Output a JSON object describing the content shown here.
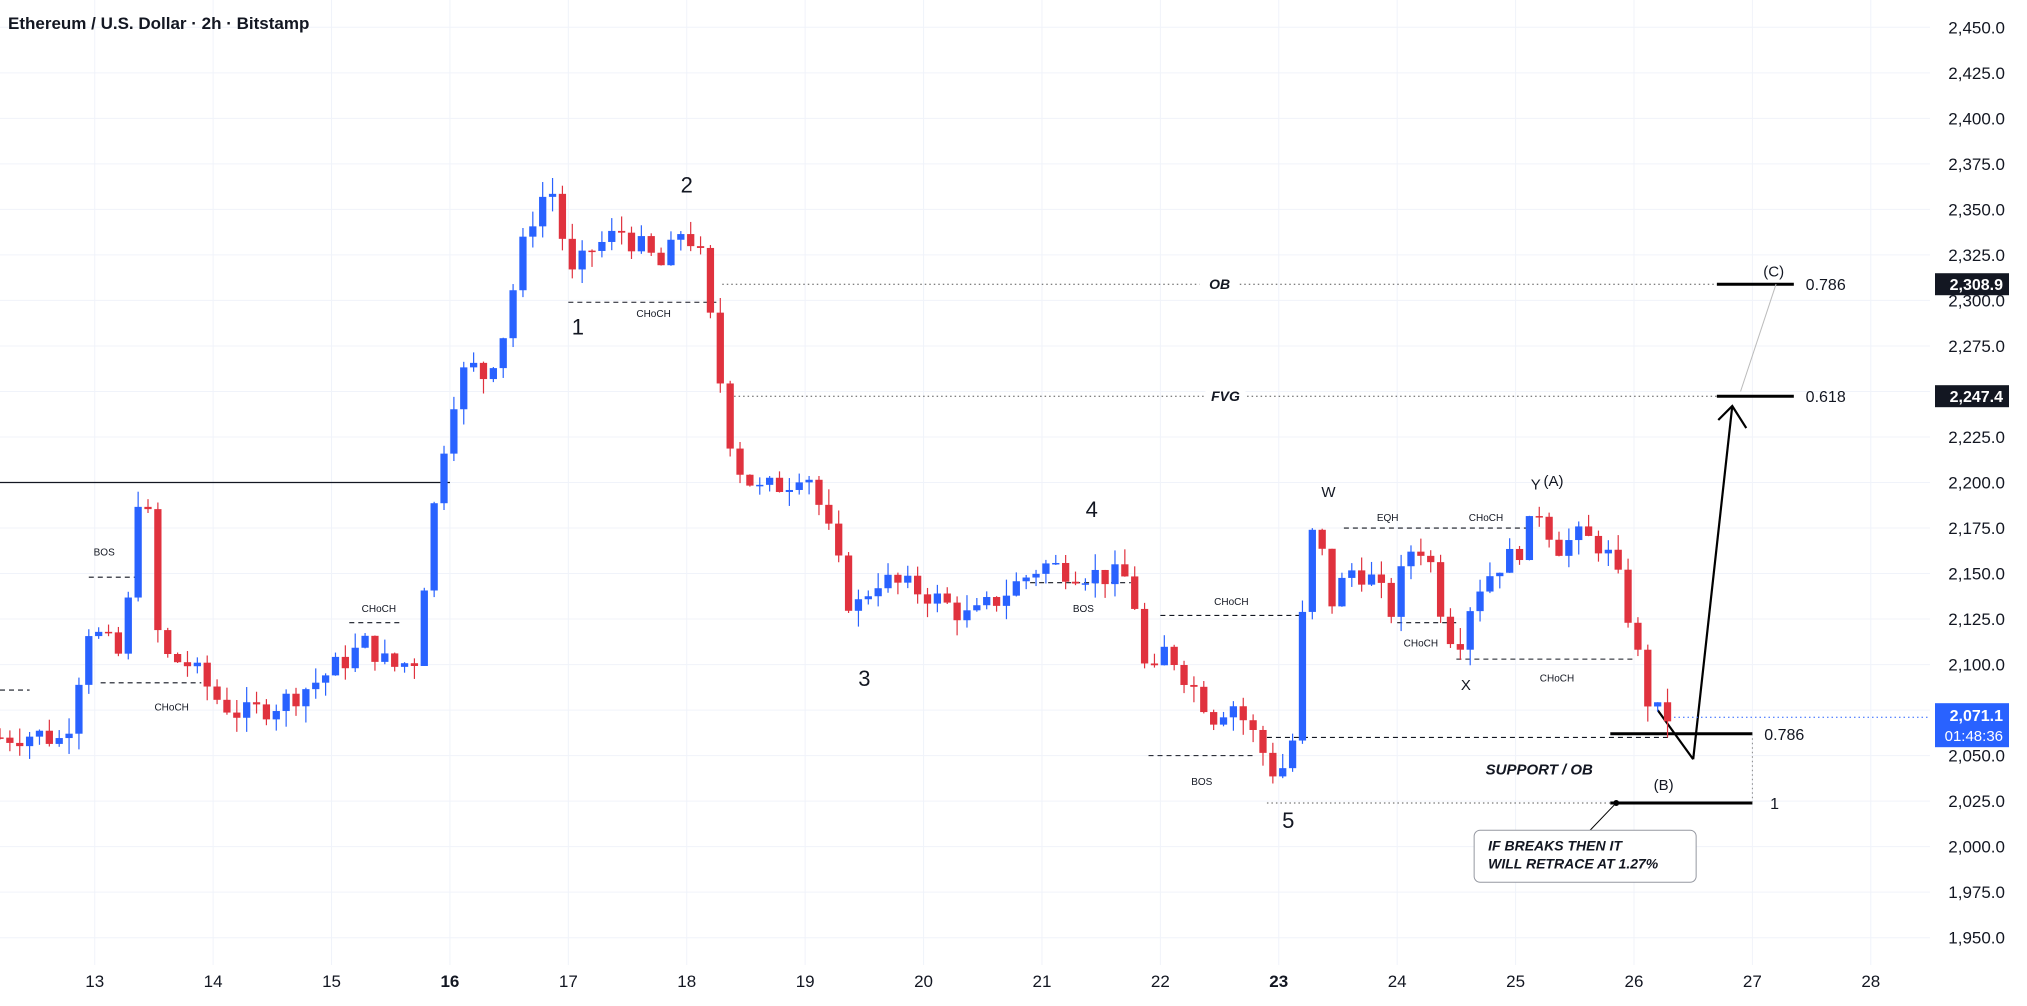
{
  "header": {
    "title": "Ethereum / U.S. Dollar · 2h · Bitstamp"
  },
  "colors": {
    "up": "#2962ff",
    "down": "#e0323e",
    "axis_text": "#131722",
    "grid": "#f0f3fa",
    "dark_badge": "#131722",
    "price_badge": "#2962ff"
  },
  "chart_data": {
    "type": "candlestick",
    "title": "Ethereum / U.S. Dollar · 2h · Bitstamp",
    "ylim": [
      1935,
      2465
    ],
    "yticks": [
      "1,950.0",
      "1,975.0",
      "2,000.0",
      "2,025.0",
      "2,050.0",
      "2,075.0",
      "2,100.0",
      "2,125.0",
      "2,150.0",
      "2,175.0",
      "2,200.0",
      "2,225.0",
      "2,250.0",
      "2,275.0",
      "2,300.0",
      "2,325.0",
      "2,350.0",
      "2,375.0",
      "2,400.0",
      "2,425.0",
      "2,450.0"
    ],
    "ytick_values": [
      1950,
      1975,
      2000,
      2025,
      2050,
      2075,
      2100,
      2125,
      2150,
      2175,
      2200,
      2225,
      2250,
      2275,
      2300,
      2325,
      2350,
      2375,
      2400,
      2425,
      2450
    ],
    "xlim": [
      12.2,
      28.5
    ],
    "xticks": [
      {
        "label": "13",
        "value": 13,
        "bold": false
      },
      {
        "label": "14",
        "value": 14,
        "bold": false
      },
      {
        "label": "15",
        "value": 15,
        "bold": false
      },
      {
        "label": "16",
        "value": 16,
        "bold": true
      },
      {
        "label": "17",
        "value": 17,
        "bold": false
      },
      {
        "label": "18",
        "value": 18,
        "bold": false
      },
      {
        "label": "19",
        "value": 19,
        "bold": false
      },
      {
        "label": "20",
        "value": 20,
        "bold": false
      },
      {
        "label": "21",
        "value": 21,
        "bold": false
      },
      {
        "label": "22",
        "value": 22,
        "bold": false
      },
      {
        "label": "23",
        "value": 23,
        "bold": true
      },
      {
        "label": "24",
        "value": 24,
        "bold": false
      },
      {
        "label": "25",
        "value": 25,
        "bold": false
      },
      {
        "label": "26",
        "value": 26,
        "bold": false
      },
      {
        "label": "27",
        "value": 27,
        "bold": false
      },
      {
        "label": "28",
        "value": 28,
        "bold": false
      }
    ],
    "anchors": [
      {
        "t": 12.2,
        "p": 2060
      },
      {
        "t": 12.5,
        "p": 2062
      },
      {
        "t": 12.75,
        "p": 2058
      },
      {
        "t": 12.95,
        "p": 2120
      },
      {
        "t": 13.1,
        "p": 2112
      },
      {
        "t": 13.25,
        "p": 2102
      },
      {
        "t": 13.35,
        "p": 2195
      },
      {
        "t": 13.45,
        "p": 2180
      },
      {
        "t": 13.55,
        "p": 2105
      },
      {
        "t": 13.8,
        "p": 2100
      },
      {
        "t": 14.05,
        "p": 2080
      },
      {
        "t": 14.25,
        "p": 2072
      },
      {
        "t": 14.6,
        "p": 2080
      },
      {
        "t": 14.9,
        "p": 2092
      },
      {
        "t": 15.3,
        "p": 2112
      },
      {
        "t": 15.5,
        "p": 2098
      },
      {
        "t": 15.7,
        "p": 2103
      },
      {
        "t": 15.85,
        "p": 2180
      },
      {
        "t": 16.0,
        "p": 2242
      },
      {
        "t": 16.15,
        "p": 2265
      },
      {
        "t": 16.3,
        "p": 2258
      },
      {
        "t": 16.45,
        "p": 2282
      },
      {
        "t": 16.6,
        "p": 2326
      },
      {
        "t": 16.75,
        "p": 2356
      },
      {
        "t": 16.9,
        "p": 2360
      },
      {
        "t": 17.0,
        "p": 2310
      },
      {
        "t": 17.2,
        "p": 2328
      },
      {
        "t": 17.45,
        "p": 2338
      },
      {
        "t": 17.8,
        "p": 2318
      },
      {
        "t": 17.95,
        "p": 2338
      },
      {
        "t": 18.1,
        "p": 2330
      },
      {
        "t": 18.25,
        "p": 2268
      },
      {
        "t": 18.4,
        "p": 2212
      },
      {
        "t": 18.6,
        "p": 2195
      },
      {
        "t": 18.85,
        "p": 2200
      },
      {
        "t": 19.0,
        "p": 2210
      },
      {
        "t": 19.2,
        "p": 2172
      },
      {
        "t": 19.4,
        "p": 2128
      },
      {
        "t": 19.6,
        "p": 2147
      },
      {
        "t": 20.0,
        "p": 2140
      },
      {
        "t": 20.4,
        "p": 2125
      },
      {
        "t": 20.7,
        "p": 2140
      },
      {
        "t": 21.0,
        "p": 2155
      },
      {
        "t": 21.4,
        "p": 2150
      },
      {
        "t": 21.75,
        "p": 2147
      },
      {
        "t": 21.9,
        "p": 2085
      },
      {
        "t": 22.05,
        "p": 2110
      },
      {
        "t": 22.2,
        "p": 2095
      },
      {
        "t": 22.45,
        "p": 2072
      },
      {
        "t": 22.6,
        "p": 2080
      },
      {
        "t": 22.8,
        "p": 2060
      },
      {
        "t": 22.95,
        "p": 2042
      },
      {
        "t": 23.1,
        "p": 2045
      },
      {
        "t": 23.2,
        "p": 2125
      },
      {
        "t": 23.3,
        "p": 2180
      },
      {
        "t": 23.45,
        "p": 2135
      },
      {
        "t": 23.6,
        "p": 2152
      },
      {
        "t": 23.75,
        "p": 2150
      },
      {
        "t": 23.95,
        "p": 2130
      },
      {
        "t": 24.1,
        "p": 2163
      },
      {
        "t": 24.25,
        "p": 2165
      },
      {
        "t": 24.35,
        "p": 2135
      },
      {
        "t": 24.5,
        "p": 2108
      },
      {
        "t": 24.65,
        "p": 2140
      },
      {
        "t": 24.85,
        "p": 2155
      },
      {
        "t": 25.0,
        "p": 2160
      },
      {
        "t": 25.2,
        "p": 2185
      },
      {
        "t": 25.35,
        "p": 2165
      },
      {
        "t": 25.55,
        "p": 2170
      },
      {
        "t": 25.75,
        "p": 2165
      },
      {
        "t": 25.9,
        "p": 2140
      },
      {
        "t": 26.0,
        "p": 2115
      },
      {
        "t": 26.1,
        "p": 2082
      },
      {
        "t": 26.2,
        "p": 2073
      },
      {
        "t": 26.3,
        "p": 2071.1
      }
    ],
    "current_price": "2,071.1",
    "countdown": "01:48:36",
    "price_badges": [
      {
        "label": "2,308.9",
        "value": 2308.9
      },
      {
        "label": "2,247.4",
        "value": 2247.4
      }
    ],
    "wave_labels": [
      {
        "text": "1",
        "t": 17.08,
        "p": 2285
      },
      {
        "text": "2",
        "t": 18.0,
        "p": 2363
      },
      {
        "text": "3",
        "t": 19.5,
        "p": 2092
      },
      {
        "text": "4",
        "t": 21.42,
        "p": 2185
      },
      {
        "text": "5",
        "t": 23.08,
        "p": 2014
      },
      {
        "text": "W",
        "t": 23.42,
        "p": 2196
      },
      {
        "text": "X",
        "t": 24.58,
        "p": 2090
      },
      {
        "text": "Y",
        "t": 25.17,
        "p": 2200
      },
      {
        "text": "(A)",
        "t": 25.32,
        "p": 2202
      },
      {
        "text": "(B)",
        "t": 26.25,
        "p": 2035
      },
      {
        "text": "(C)",
        "t": 27.18,
        "p": 2317
      }
    ],
    "structure_labels": [
      {
        "text": "BOS",
        "t": 13.08,
        "p": 2162
      },
      {
        "text": "CHoCH",
        "t": 13.65,
        "p": 2077
      },
      {
        "text": "CHoCH",
        "t": 15.4,
        "p": 2131
      },
      {
        "text": "CHoCH",
        "t": 17.72,
        "p": 2293
      },
      {
        "text": "BOS",
        "t": 21.35,
        "p": 2131
      },
      {
        "text": "CHoCH",
        "t": 22.6,
        "p": 2135
      },
      {
        "text": "BOS",
        "t": 22.35,
        "p": 2036
      },
      {
        "text": "EQH",
        "t": 23.92,
        "p": 2181
      },
      {
        "text": "CHoCH",
        "t": 24.75,
        "p": 2181
      },
      {
        "text": "CHoCH",
        "t": 24.2,
        "p": 2112
      },
      {
        "text": "CHoCH",
        "t": 25.35,
        "p": 2093
      }
    ],
    "zones": [
      {
        "label": "OB",
        "level": 2308.9,
        "start": 18.3,
        "label_t": 19.25,
        "end_t": 27.4,
        "fib": "0.786"
      },
      {
        "label": "FVG",
        "level": 2247.4,
        "start": 18.4,
        "label_t": 19.0,
        "end_t": 27.4,
        "fib": "0.618"
      }
    ],
    "support": {
      "label": "SUPPORT / OB",
      "fib_top": "0.786",
      "fib_bottom": "1",
      "top": 2062,
      "bottom": 2024
    },
    "note": [
      "IF BREAKS THEN IT",
      "WILL RETRACE AT 1.27%"
    ]
  }
}
